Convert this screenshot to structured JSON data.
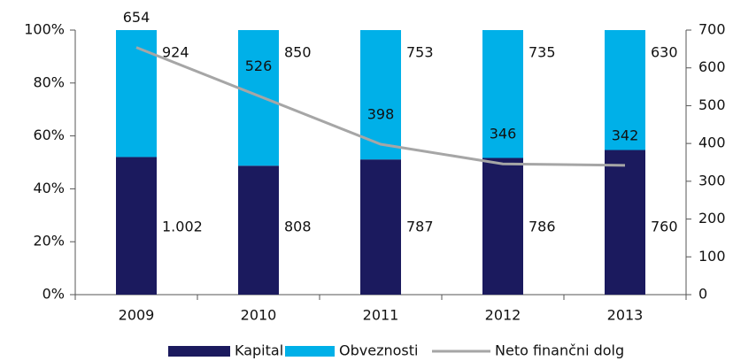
{
  "chart_data": {
    "type": "bar",
    "stack": "percent",
    "categories": [
      "2009",
      "2010",
      "2011",
      "2012",
      "2013"
    ],
    "series": [
      {
        "name": "Kapital",
        "color": "#1b1a5e",
        "values": [
          1002,
          808,
          787,
          786,
          760
        ],
        "value_labels": [
          "1.002",
          "808",
          "787",
          "786",
          "760"
        ]
      },
      {
        "name": "Obveznosti",
        "color": "#00b0e8",
        "values": [
          924,
          850,
          753,
          735,
          630
        ]
      },
      {
        "name": "Neto finančni dolg",
        "type": "line",
        "axis": "y2",
        "color": "#a6a6a6",
        "values": [
          654,
          526,
          398,
          346,
          342
        ]
      }
    ],
    "ylim": [
      0,
      100
    ],
    "yticks": [
      {
        "value": 0,
        "label": "0%"
      },
      {
        "value": 20,
        "label": "20%"
      },
      {
        "value": 40,
        "label": "40%"
      },
      {
        "value": 60,
        "label": "60%"
      },
      {
        "value": 80,
        "label": "80%"
      },
      {
        "value": 100,
        "label": "100%"
      }
    ],
    "y2lim": [
      0,
      700
    ],
    "y2ticks": [
      0,
      100,
      200,
      300,
      400,
      500,
      600,
      700
    ],
    "legend": "bottom"
  }
}
